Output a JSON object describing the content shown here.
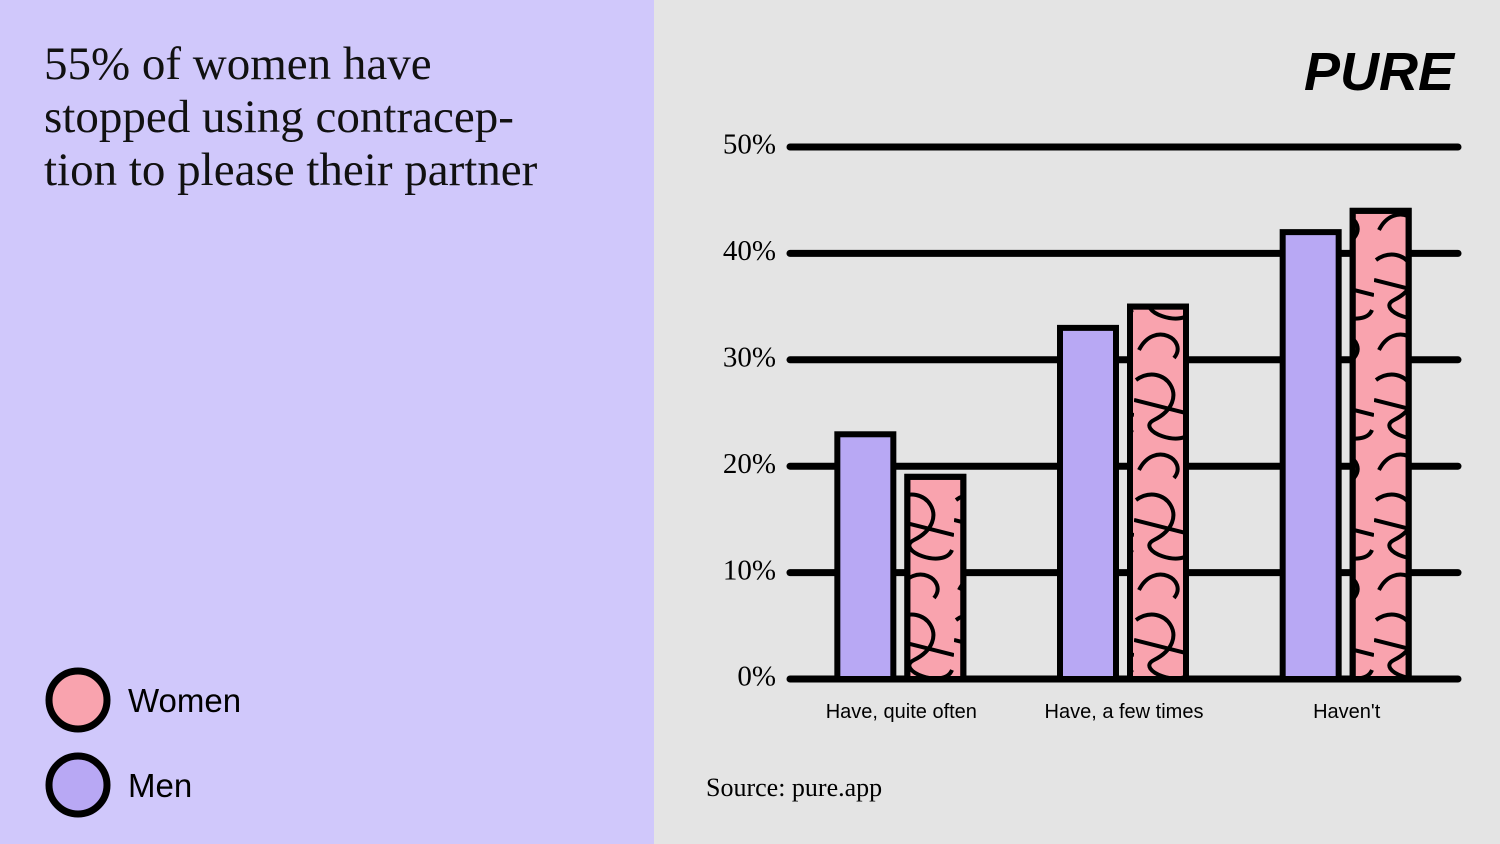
{
  "chart_data": {
    "type": "bar",
    "title": "55% of women have\nstopped using contracep-\ntion to please their partner",
    "brand": "PURE",
    "source": "Source: pure.app",
    "categories": [
      "Have, quite often",
      "Have, a few times",
      "Haven't"
    ],
    "series": [
      {
        "name": "Women",
        "color": "#f9a3ae",
        "values": [
          19,
          35,
          44
        ]
      },
      {
        "name": "Men",
        "color": "#b8a8f4",
        "values": [
          23,
          33,
          42
        ]
      }
    ],
    "ylim": [
      0,
      50
    ],
    "yticks": [
      {
        "value": 0,
        "label": "0%"
      },
      {
        "value": 10,
        "label": "10%"
      },
      {
        "value": 20,
        "label": "20%"
      },
      {
        "value": 30,
        "label": "30%"
      },
      {
        "value": 40,
        "label": "40%"
      },
      {
        "value": 50,
        "label": "50%"
      }
    ],
    "grid": true
  }
}
